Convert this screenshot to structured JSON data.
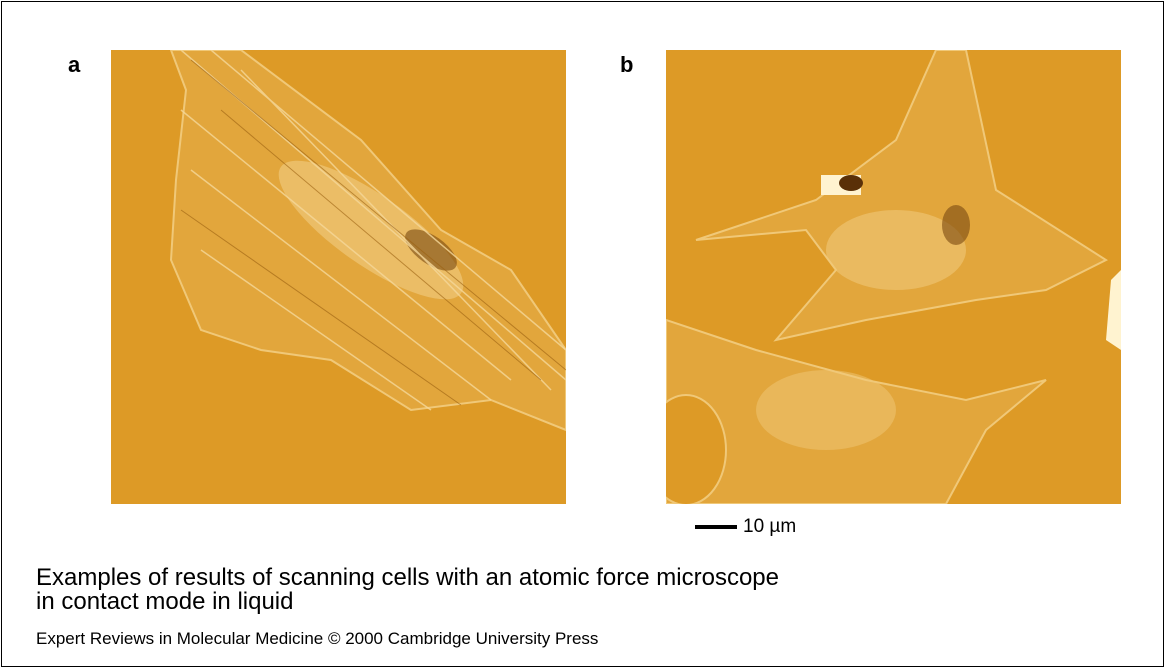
{
  "figure": {
    "panels": [
      {
        "label": "a"
      },
      {
        "label": "b"
      }
    ],
    "scale_bar": "10 µm",
    "caption": {
      "title": [
        "Examples of results of scanning cells with an atomic force microscope",
        "in contact mode in liquid"
      ],
      "credit": "Expert Reviews in Molecular Medicine © 2000 Cambridge University Press"
    }
  }
}
